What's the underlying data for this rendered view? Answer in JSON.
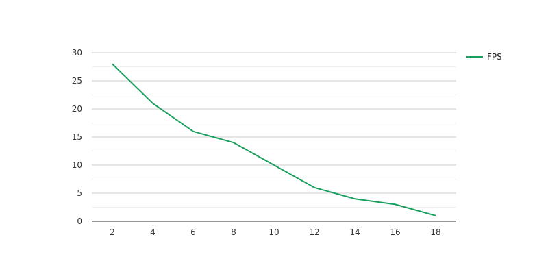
{
  "chart_data": {
    "type": "line",
    "title": "",
    "xlabel": "",
    "ylabel": "",
    "x": [
      2,
      4,
      6,
      8,
      10,
      12,
      14,
      16,
      18
    ],
    "series": [
      {
        "name": "FPS",
        "values": [
          28,
          21,
          16,
          14,
          10,
          6,
          4,
          3,
          1
        ],
        "color": "#1a9e5c"
      }
    ],
    "xticks": [
      2,
      4,
      6,
      8,
      10,
      12,
      14,
      16,
      18
    ],
    "yticks": [
      0,
      5,
      10,
      15,
      20,
      25,
      30
    ],
    "ylim": [
      0,
      30
    ],
    "grid": {
      "major": true,
      "minor": true,
      "major_color": "#cccccc",
      "minor_color": "#eeeeee"
    },
    "legend": {
      "position": "right-top"
    }
  }
}
